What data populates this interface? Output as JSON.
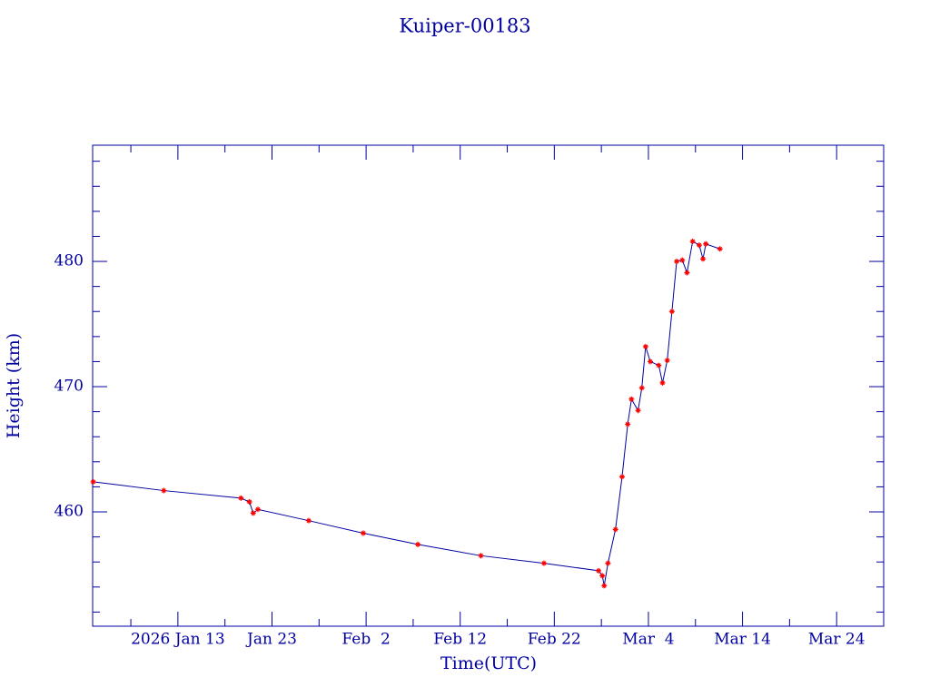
{
  "chart_data": {
    "type": "line",
    "title": "Kuiper-00183",
    "xlabel": "Time(UTC)",
    "ylabel": "Height (km)",
    "x": [
      4.0,
      11.5,
      19.7,
      20.6,
      21.0,
      21.5,
      26.9,
      32.7,
      38.5,
      45.2,
      51.9,
      57.7,
      58.1,
      58.3,
      58.7,
      59.5,
      60.2,
      60.8,
      61.2,
      61.9,
      62.3,
      62.7,
      63.2,
      64.1,
      64.5,
      65.0,
      65.5,
      66.0,
      66.6,
      67.1,
      67.7,
      68.4,
      68.8,
      69.1,
      70.6
    ],
    "series": [
      {
        "color": "#0000a0",
        "marker_color": "#ff0000",
        "values": [
          462.4,
          461.7,
          461.1,
          460.8,
          459.9,
          460.2,
          459.3,
          458.3,
          457.4,
          456.5,
          455.9,
          455.3,
          454.9,
          454.1,
          455.9,
          458.6,
          462.8,
          467.0,
          469.0,
          468.1,
          469.9,
          473.2,
          472.0,
          471.7,
          470.3,
          472.1,
          476.0,
          480.0,
          480.1,
          479.1,
          481.6,
          481.3,
          480.2,
          481.4,
          481.0
        ]
      }
    ],
    "xlim": [
      3.94,
      88.0
    ],
    "xticks": [
      {
        "value": 13,
        "label": "2026 Jan 13"
      },
      {
        "value": 23,
        "label": "Jan 23"
      },
      {
        "value": 33,
        "label": "Feb  2"
      },
      {
        "value": 43,
        "label": "Feb 12"
      },
      {
        "value": 53,
        "label": "Feb 22"
      },
      {
        "value": 63,
        "label": "Mar  4"
      },
      {
        "value": 73,
        "label": "Mar 14"
      },
      {
        "value": 83,
        "label": "Mar 24"
      }
    ],
    "xminorticks": [
      8,
      18,
      28,
      38,
      48,
      58,
      68,
      78,
      88
    ],
    "ylim": [
      450.87,
      489.28
    ],
    "yticks": [
      460,
      470,
      480
    ],
    "yminorticks": [
      452,
      454,
      456,
      458,
      462,
      464,
      466,
      468,
      472,
      474,
      476,
      478,
      482,
      484,
      486,
      488
    ]
  }
}
